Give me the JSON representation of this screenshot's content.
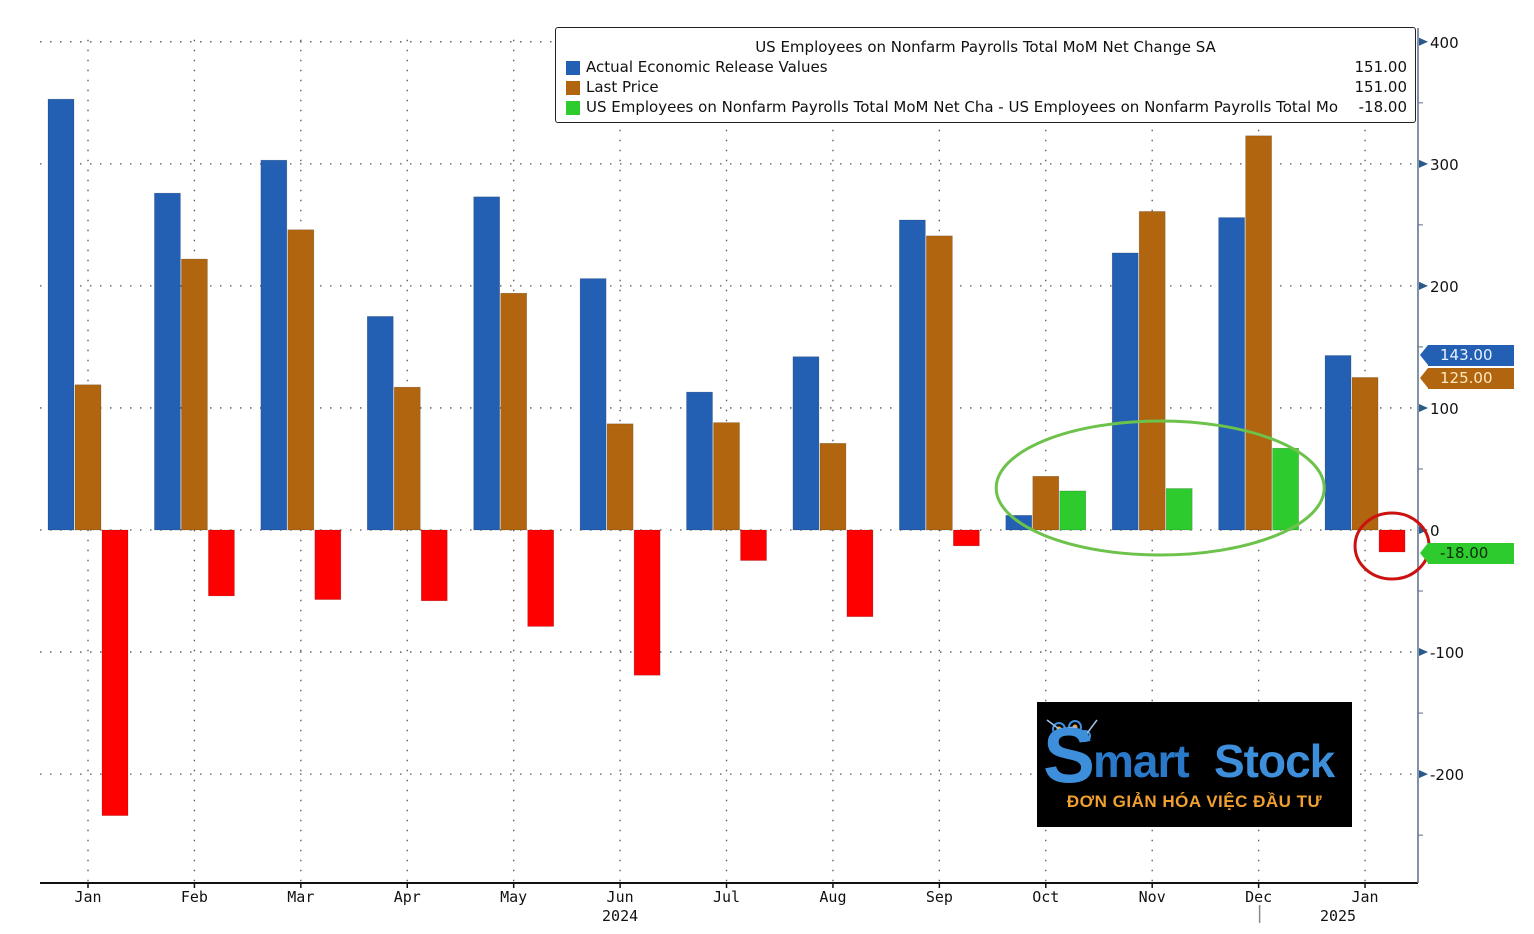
{
  "chart_data": {
    "type": "bar",
    "title": "US Employees on Nonfarm Payrolls Total MoM Net Change SA",
    "categories": [
      "Jan",
      "Feb",
      "Mar",
      "Apr",
      "May",
      "Jun",
      "Jul",
      "Aug",
      "Sep",
      "Oct",
      "Nov",
      "Dec",
      "Jan"
    ],
    "year_labels": [
      {
        "label": "2024",
        "category_index": 5
      },
      {
        "label": "2025",
        "category_index": 12
      }
    ],
    "series": [
      {
        "name": "Actual Economic Release Values",
        "color": "#2360b4",
        "last_value": "151.00",
        "tag_value": "143.00",
        "values": [
          353,
          276,
          303,
          175,
          273,
          206,
          113,
          142,
          254,
          12,
          227,
          256,
          143
        ]
      },
      {
        "name": "Last Price",
        "color": "#b0650e",
        "last_value": "151.00",
        "tag_value": "125.00",
        "values": [
          119,
          222,
          246,
          117,
          194,
          87,
          88,
          71,
          241,
          44,
          261,
          323,
          125
        ]
      },
      {
        "name": "US Employees on Nonfarm Payrolls Total MoM Net Cha - US Employees on Nonfarm Payrolls Total Mo",
        "color": "#2ecb2e",
        "negative_color": "#ff0000",
        "last_value": "-18.00",
        "tag_value": "-18.00",
        "values": [
          -234,
          -54,
          -57,
          -58,
          -79,
          -119,
          -25,
          -71,
          -13,
          32,
          34,
          67,
          -18
        ]
      }
    ],
    "yticks": [
      400,
      300,
      200,
      100,
      0,
      -100,
      -200
    ],
    "ytick_labels": [
      "400",
      "300",
      "200",
      "100",
      "0",
      "-100",
      "-200"
    ],
    "ylim": [
      -289,
      400
    ],
    "y_axis_side": "right",
    "grid": true,
    "legend_position": "top-right",
    "annotations": [
      {
        "type": "ellipse",
        "color": "#6cc24a",
        "covers": "Oct-Dec green bars"
      },
      {
        "type": "circle",
        "color": "#cc1111",
        "covers": "Jan 2025 red bar"
      }
    ]
  },
  "logo": {
    "brand_s": "S",
    "brand_mart": "mart",
    "brand_stock": "Stock",
    "tagline": "ĐƠN GIẢN HÓA VIỆC ĐẦU TƯ"
  }
}
